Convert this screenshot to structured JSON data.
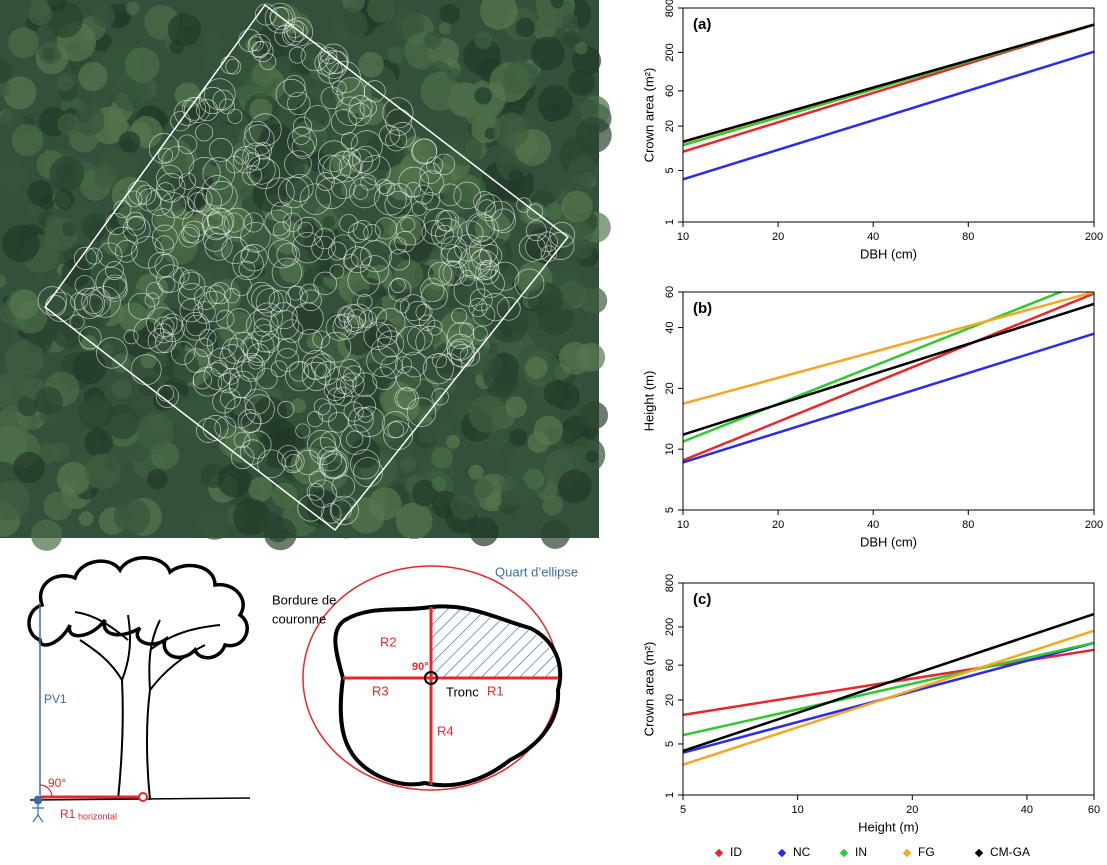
{
  "tree_diagram": {
    "height_label": "PV1",
    "angle": "90°",
    "radius": "R1",
    "radius_note": "horizontal"
  },
  "crown_diagram": {
    "border_label": [
      "Bordure de",
      "couronne"
    ],
    "quadrant_label": "Quart d’ellipse",
    "radii": [
      "R1",
      "R2",
      "R3",
      "R4"
    ],
    "angle": "90°",
    "trunk": "Tronc"
  },
  "chart_data": [
    {
      "type": "line",
      "panel_label": "(a)",
      "x_label": "DBH (cm)",
      "y_label": "Crown area (m²)",
      "x": [
        10,
        200
      ],
      "xlim": [
        10,
        200
      ],
      "xticks": [
        10,
        20,
        40,
        80,
        200
      ],
      "ylim": [
        1,
        800
      ],
      "yticks": [
        1,
        5,
        20,
        60,
        200,
        800
      ],
      "log_x": true,
      "log_y": true,
      "series": [
        {
          "color": "#e8262b",
          "values": [
            9,
            475
          ]
        },
        {
          "color": "#2b2bef",
          "values": [
            3.8,
            204
          ]
        },
        {
          "color": "#2fc92f",
          "values": [
            11,
            475
          ]
        },
        {
          "color": "#f5a623",
          "values": [
            12,
            480
          ]
        },
        {
          "color": "#000000",
          "values": [
            12.3,
            475
          ]
        }
      ]
    },
    {
      "type": "line",
      "panel_label": "(b)",
      "x_label": "DBH (cm)",
      "y_label": "Height (m)",
      "x": [
        10,
        200
      ],
      "xlim": [
        10,
        200
      ],
      "xticks": [
        10,
        20,
        40,
        80,
        200
      ],
      "ylim": [
        5,
        60
      ],
      "yticks": [
        5,
        10,
        20,
        40,
        60
      ],
      "log_x": true,
      "log_y": true,
      "series": [
        {
          "color": "#e8262b",
          "values": [
            8.8,
            59
          ]
        },
        {
          "color": "#2b2bef",
          "values": [
            8.6,
            37.3
          ]
        },
        {
          "color": "#2fc92f",
          "values": [
            10.9,
            69.8
          ]
        },
        {
          "color": "#f5a623",
          "values": [
            16.8,
            60
          ]
        },
        {
          "color": "#000000",
          "values": [
            11.8,
            52.4
          ]
        }
      ]
    },
    {
      "type": "line",
      "panel_label": "(c)",
      "x_label": "Height (m)",
      "y_label": "Crown area (m²)",
      "x": [
        5,
        60
      ],
      "xlim": [
        5,
        60
      ],
      "xticks": [
        5,
        10,
        20,
        40,
        60
      ],
      "ylim": [
        1,
        800
      ],
      "yticks": [
        1,
        5,
        20,
        60,
        200,
        800
      ],
      "log_x": true,
      "log_y": true,
      "series": [
        {
          "name": "ID",
          "color": "#e8262b",
          "values": [
            12.5,
            97
          ]
        },
        {
          "name": "NC",
          "color": "#2b2bef",
          "values": [
            3.8,
            121
          ]
        },
        {
          "name": "IN",
          "color": "#2fc92f",
          "values": [
            6.6,
            121
          ]
        },
        {
          "name": "FG",
          "color": "#f5a623",
          "values": [
            2.6,
            178
          ]
        },
        {
          "name": "CM-GA",
          "color": "#000000",
          "values": [
            4.0,
            300
          ]
        }
      ]
    }
  ]
}
